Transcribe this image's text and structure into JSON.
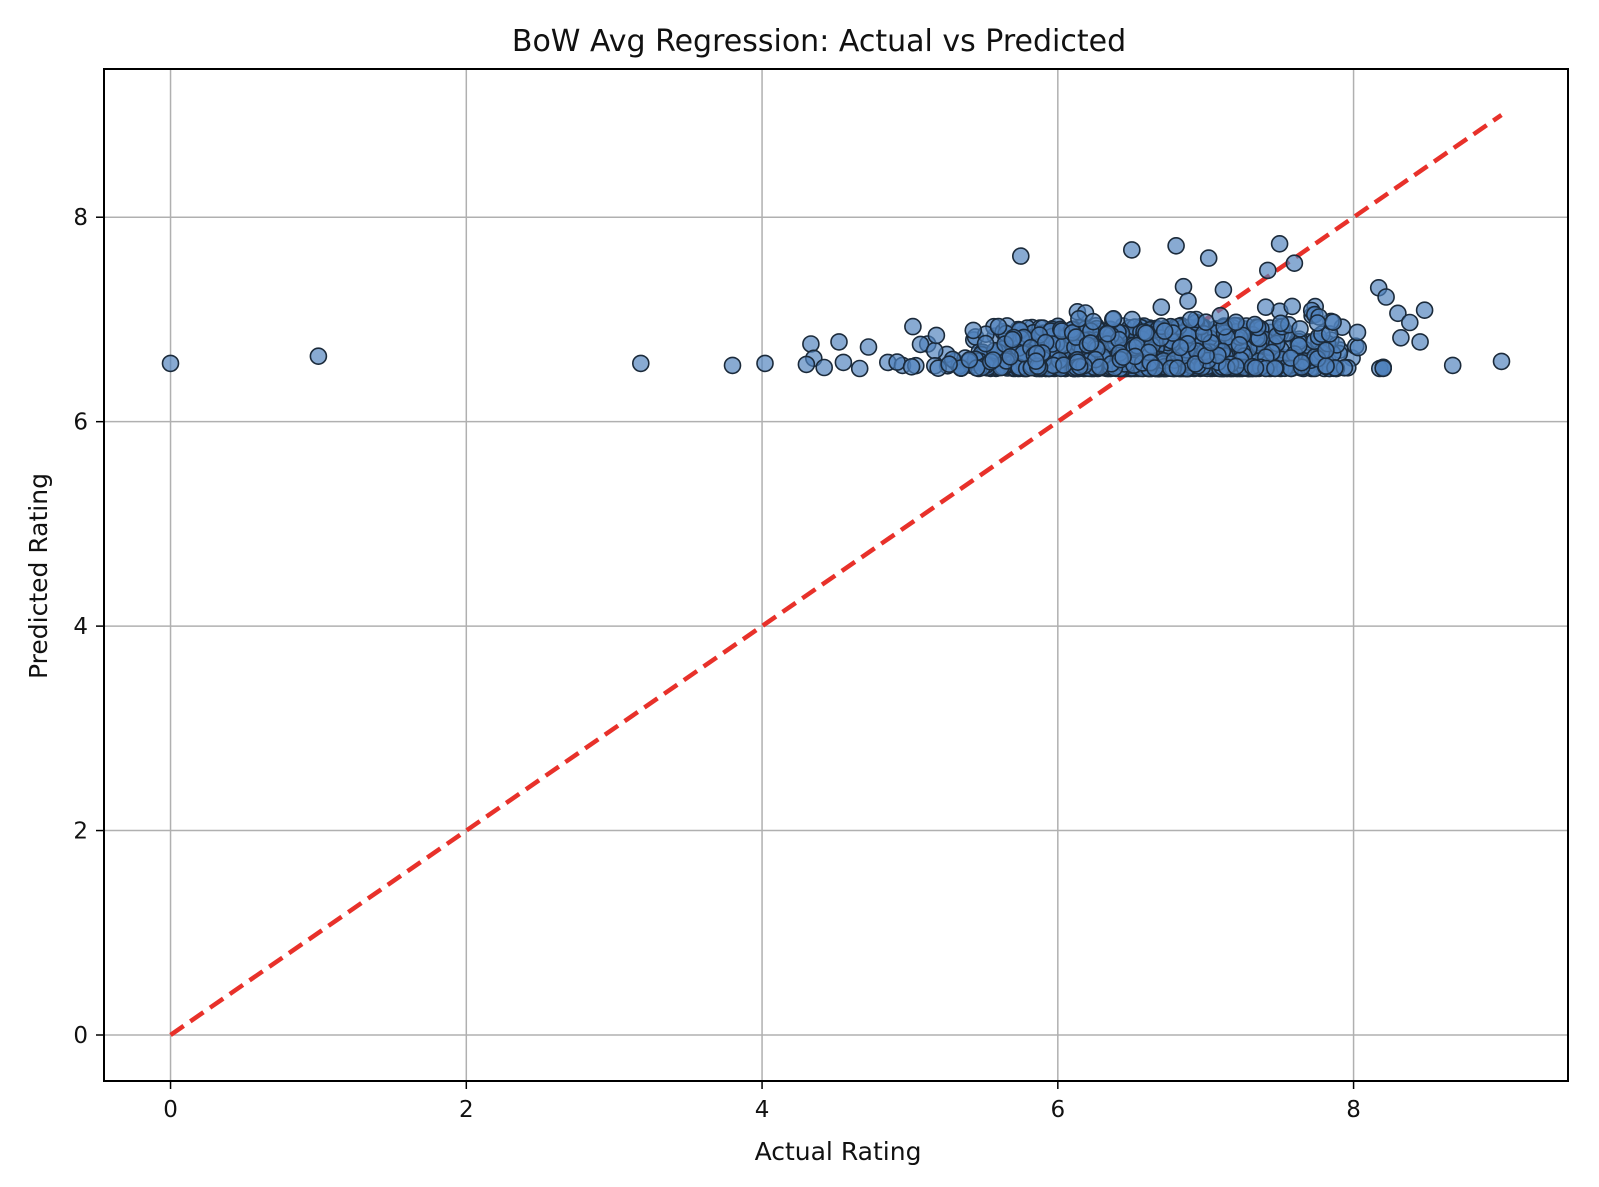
{
  "chart_data": {
    "type": "scatter",
    "title": "BoW Avg Regression: Actual vs Predicted",
    "xlabel": "Actual Rating",
    "ylabel": "Predicted Rating",
    "xlim": [
      -0.45,
      9.45
    ],
    "ylim": [
      -0.45,
      9.45
    ],
    "xticks": [
      0,
      2,
      4,
      6,
      8
    ],
    "yticks": [
      0,
      2,
      4,
      6,
      8
    ],
    "grid": true,
    "colors": {
      "point_fill": "#4f81bd",
      "point_stroke": "#1b2a3a",
      "reference_line": "#e8312a"
    },
    "reference_line": {
      "style": "dashed",
      "from": [
        0,
        0
      ],
      "to": [
        9,
        9
      ]
    },
    "series": [
      {
        "values": [
          [
            0,
            6.57
          ],
          [
            1.0,
            6.64
          ],
          [
            3.18,
            6.57
          ],
          [
            3.8,
            6.55
          ],
          [
            4.02,
            6.57
          ],
          [
            8.67,
            6.55
          ],
          [
            9.0,
            6.59
          ],
          [
            5.75,
            7.62
          ],
          [
            6.5,
            7.68
          ],
          [
            6.8,
            7.72
          ],
          [
            7.02,
            7.6
          ],
          [
            7.5,
            7.74
          ],
          [
            7.6,
            7.55
          ],
          [
            7.42,
            7.48
          ],
          [
            6.85,
            7.32
          ],
          [
            6.88,
            7.18
          ],
          [
            7.12,
            7.29
          ],
          [
            8.17,
            7.31
          ],
          [
            8.22,
            7.22
          ],
          [
            8.3,
            7.06
          ],
          [
            8.48,
            7.09
          ],
          [
            8.38,
            6.97
          ],
          [
            8.32,
            6.82
          ],
          [
            8.45,
            6.78
          ],
          [
            4.33,
            6.76
          ],
          [
            4.35,
            6.62
          ],
          [
            4.52,
            6.78
          ],
          [
            4.72,
            6.73
          ],
          [
            5.02,
            6.93
          ],
          [
            5.12,
            6.76
          ],
          [
            4.3,
            6.56
          ],
          [
            4.55,
            6.58
          ],
          [
            4.66,
            6.52
          ],
          [
            4.85,
            6.58
          ],
          [
            4.95,
            6.55
          ],
          [
            4.42,
            6.53
          ]
        ]
      }
    ]
  }
}
